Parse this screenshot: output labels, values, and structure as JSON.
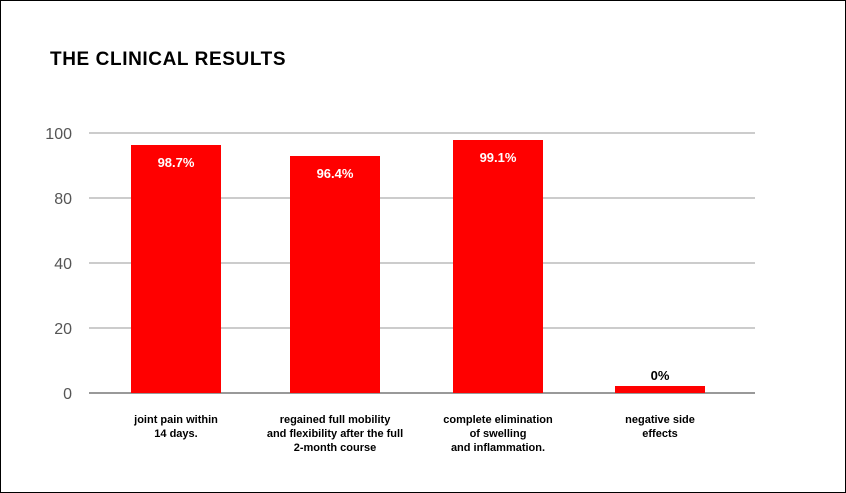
{
  "chart_data": {
    "type": "bar",
    "title": "THE CLINICAL RESULTS",
    "categories": [
      [
        "joint pain within",
        "14 days."
      ],
      [
        "regained full mobility",
        "and flexibility after the full",
        "2-month course"
      ],
      [
        "complete elimination",
        "of swelling",
        "and inflammation."
      ],
      [
        "negative side",
        "effects"
      ]
    ],
    "values": [
      98.7,
      96.4,
      99.1,
      0
    ],
    "data_labels": [
      "98.7%",
      "96.4%",
      "99.1%",
      "0%"
    ],
    "y_ticks": [
      0,
      20,
      40,
      80,
      100
    ],
    "y_tick_labels": [
      "0",
      "20",
      "40",
      "80",
      "100"
    ],
    "grid": true,
    "bar_color": "#ff0000",
    "grid_color": "#999999"
  }
}
